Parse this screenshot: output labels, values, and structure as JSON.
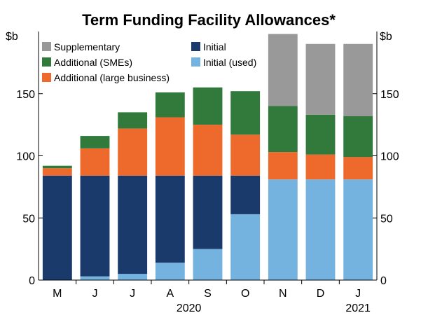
{
  "chart_data": {
    "type": "bar",
    "stacked": true,
    "title": "Term Funding Facility Allowances*",
    "unit_left": "$b",
    "unit_right": "$b",
    "categories": [
      "M",
      "J",
      "J",
      "A",
      "S",
      "O",
      "N",
      "D",
      "J"
    ],
    "year_labels": [
      {
        "label": "2020",
        "category_index": 3.5
      },
      {
        "label": "2021",
        "category_index": 8
      }
    ],
    "yticks": [
      0,
      50,
      100,
      150
    ],
    "ylim": [
      0,
      200
    ],
    "grid": false,
    "legend_position": "top-left",
    "series": [
      {
        "name": "Initial (used)",
        "color": "#74b3e0",
        "values": [
          0,
          3,
          5,
          14,
          25,
          53,
          81,
          81,
          81
        ]
      },
      {
        "name": "Initial",
        "color": "#1a3a6b",
        "values": [
          84,
          81,
          79,
          70,
          59,
          31,
          0,
          0,
          0
        ]
      },
      {
        "name": "Additional (large business)",
        "color": "#ed6a2c",
        "values": [
          6,
          22,
          38,
          47,
          41,
          33,
          22,
          20,
          18
        ]
      },
      {
        "name": "Additional (SMEs)",
        "color": "#317a3c",
        "values": [
          2,
          10,
          13,
          20,
          30,
          35,
          37,
          32,
          33
        ]
      },
      {
        "name": "Supplementary",
        "color": "#999999",
        "values": [
          0,
          0,
          0,
          0,
          0,
          0,
          58,
          57,
          58
        ]
      }
    ],
    "legend_order": [
      [
        "Supplementary",
        "Initial"
      ],
      [
        "Additional (SMEs)",
        "Initial (used)"
      ],
      [
        "Additional (large business)"
      ]
    ]
  }
}
